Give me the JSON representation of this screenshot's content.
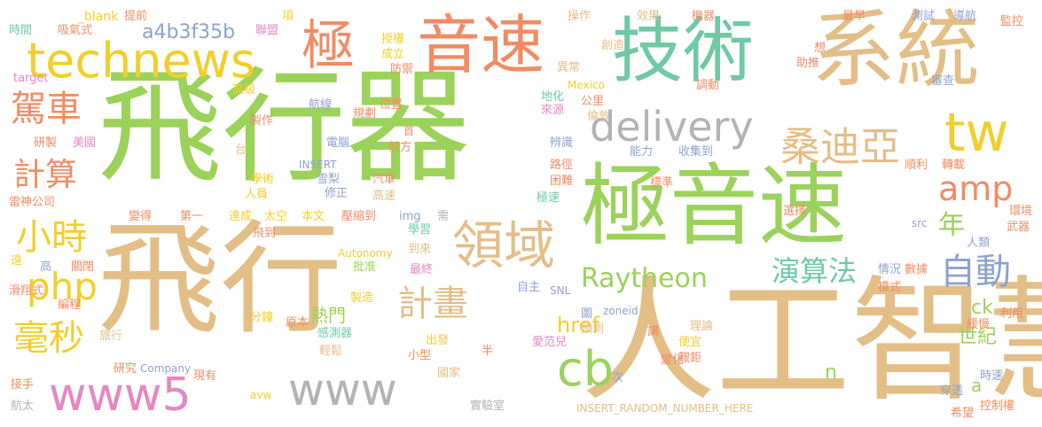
{
  "palette": {
    "green": "#9bd25a",
    "tan": "#e3be86",
    "orange": "#f28b63",
    "yellow": "#f2ce2a",
    "pink": "#e587c2",
    "gray": "#b3b3b3",
    "teal": "#6fc9a6",
    "blue": "#8fa2cc"
  },
  "words": [
    "飛行器",
    "人工智慧",
    "飛行",
    "極音速",
    "技術",
    "系統",
    "極",
    "音速",
    "technews",
    "www5",
    "www",
    "delivery",
    "領域",
    "桑迪亞",
    "tw",
    "駕車",
    "計算",
    "小時",
    "php",
    "毫秒",
    "計畫",
    "Raytheon",
    "演算法",
    "自動",
    "amp",
    "cb",
    "年",
    "a4b3f35b",
    "熱門",
    "href",
    "ck",
    "世紀",
    "n",
    "a",
    "_blank",
    "吸氣式",
    "時間",
    "提前",
    "項",
    "聯盟",
    "target",
    "授權",
    "成立",
    "防禦",
    "操作",
    "創造",
    "效果",
    "機器",
    "最早",
    "測試",
    "導航",
    "監控",
    "審查",
    "想",
    "助推",
    "異常",
    "地化",
    "來源",
    "Mexico",
    "公里",
    "倫敦",
    "調動",
    "高級",
    "製作",
    "航線",
    "規劃",
    "位置",
    "研製",
    "美國",
    "電腦",
    "前方",
    "首",
    "辨識",
    "能力",
    "收集到",
    "路徑",
    "標準",
    "順利",
    "轉載",
    "台",
    "學術",
    "INSERT",
    "汽車",
    "雪梨",
    "困難",
    "選擇",
    "環境",
    "人員",
    "修正",
    "高速",
    "極速",
    "雷神公司",
    "變得",
    "第一",
    "達成",
    "太空",
    "本文",
    "壓縮到",
    "img",
    "需",
    "src",
    "武器",
    "人類",
    "飛到",
    "學習",
    "到來",
    "Autonomy",
    "遠",
    "高",
    "關閉",
    "批准",
    "最終",
    "情況",
    "數據",
    "模式",
    "滑翔式",
    "編程",
    "自主",
    "SNL",
    "製造",
    "圖",
    "zoneid",
    "利用",
    "緩慢",
    "分鐘",
    "原本",
    "感測器",
    "預測",
    "講",
    "理論",
    "旅行",
    "出發",
    "愛范兒",
    "半",
    "便宜",
    "研究",
    "Company",
    "輕鬆",
    "小型",
    "變化",
    "艱鉅",
    "國家",
    "次",
    "時速",
    "現有",
    "接手",
    "avw",
    "穿透",
    "控制權",
    "航太",
    "實驗室",
    "INSERT_RANDOM_NUMBER_HERE",
    "希望"
  ]
}
